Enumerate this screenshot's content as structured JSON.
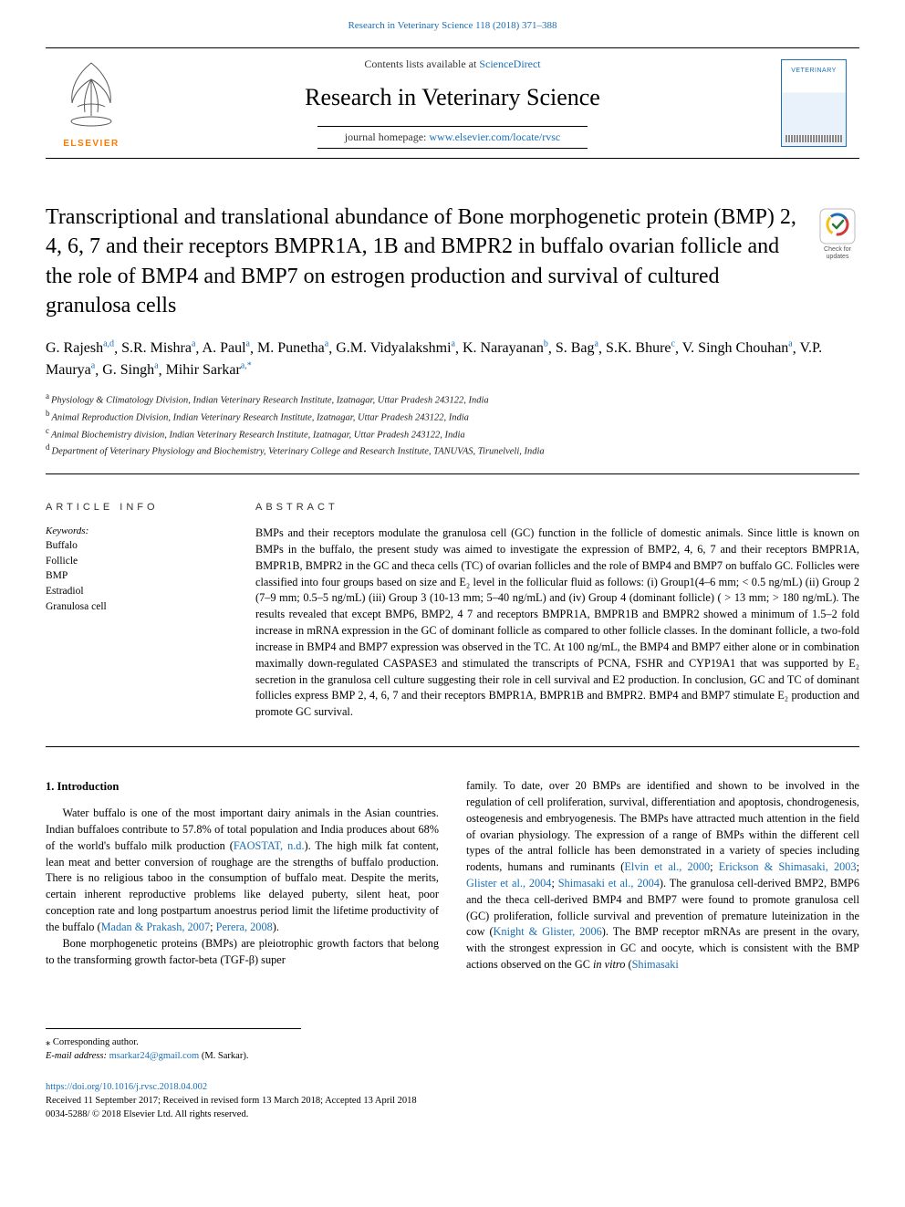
{
  "header": {
    "citation": "Research in Veterinary Science 118 (2018) 371–388",
    "contents_prefix": "Contents lists available at ",
    "contents_link": "ScienceDirect",
    "journal_name": "Research in Veterinary Science",
    "homepage_prefix": "journal homepage: ",
    "homepage_link": "www.elsevier.com/locate/rvsc",
    "publisher_word": "ELSEVIER",
    "cover_word": "VETERINARY"
  },
  "updates_badge": {
    "line1": "Check for",
    "line2": "updates"
  },
  "title": "Transcriptional and translational abundance of Bone morphogenetic protein (BMP) 2, 4, 6, 7 and their receptors BMPR1A, 1B and BMPR2 in buffalo ovarian follicle and the role of BMP4 and BMP7 on estrogen production and survival of cultured granulosa cells",
  "authors": [
    {
      "name": "G. Rajesh",
      "aff": "a,d"
    },
    {
      "name": "S.R. Mishra",
      "aff": "a"
    },
    {
      "name": "A. Paul",
      "aff": "a"
    },
    {
      "name": "M. Punetha",
      "aff": "a"
    },
    {
      "name": "G.M. Vidyalakshmi",
      "aff": "a"
    },
    {
      "name": "K. Narayanan",
      "aff": "b"
    },
    {
      "name": "S. Bag",
      "aff": "a"
    },
    {
      "name": "S.K. Bhure",
      "aff": "c"
    },
    {
      "name": "V. Singh Chouhan",
      "aff": "a"
    },
    {
      "name": "V.P. Maurya",
      "aff": "a"
    },
    {
      "name": "G. Singh",
      "aff": "a"
    },
    {
      "name": "Mihir Sarkar",
      "aff": "a,*"
    }
  ],
  "affiliations": [
    {
      "label": "a",
      "text": "Physiology & Climatology Division, Indian Veterinary Research Institute, Izatnagar, Uttar Pradesh 243122, India"
    },
    {
      "label": "b",
      "text": "Animal Reproduction Division, Indian Veterinary Research Institute, Izatnagar, Uttar Pradesh 243122, India"
    },
    {
      "label": "c",
      "text": "Animal Biochemistry division, Indian Veterinary Research Institute, Izatnagar, Uttar Pradesh 243122, India"
    },
    {
      "label": "d",
      "text": "Department of Veterinary Physiology and Biochemistry, Veterinary College and Research Institute, TANUVAS, Tirunelveli, India"
    }
  ],
  "article_info": {
    "heading": "ARTICLE INFO",
    "keywords_label": "Keywords:",
    "keywords": [
      "Buffalo",
      "Follicle",
      "BMP",
      "Estradiol",
      "Granulosa cell"
    ]
  },
  "abstract": {
    "heading": "ABSTRACT",
    "text": "BMPs and their receptors modulate the granulosa cell (GC) function in the follicle of domestic animals. Since little is known on BMPs in the buffalo, the present study was aimed to investigate the expression of BMP2, 4, 6, 7 and their receptors BMPR1A, BMPR1B, BMPR2 in the GC and theca cells (TC) of ovarian follicles and the role of BMP4 and BMP7 on buffalo GC. Follicles were classified into four groups based on size and E₂ level in the follicular fluid as follows: (i) Group1(4–6 mm; < 0.5 ng/mL) (ii) Group 2 (7–9 mm; 0.5–5 ng/mL) (iii) Group 3 (10-13 mm; 5–40 ng/mL) and (iv) Group 4 (dominant follicle) ( > 13 mm; > 180 ng/mL). The results revealed that except BMP6, BMP2, 4 7 and receptors BMPR1A, BMPR1B and BMPR2 showed a minimum of 1.5–2 fold increase in mRNA expression in the GC of dominant follicle as compared to other follicle classes. In the dominant follicle, a two-fold increase in BMP4 and BMP7 expression was observed in the TC. At 100 ng/mL, the BMP4 and BMP7 either alone or in combination maximally down-regulated CASPASE3 and stimulated the transcripts of PCNA, FSHR and CYP19A1 that was supported by E₂ secretion in the granulosa cell culture suggesting their role in cell survival and E2 production. In conclusion, GC and TC of dominant follicles express BMP 2, 4, 6, 7 and their receptors BMPR1A, BMPR1B and BMPR2. BMP4 and BMP7 stimulate E₂ production and promote GC survival."
  },
  "body": {
    "intro_heading": "1. Introduction",
    "p1_pre": "Water buffalo is one of the most important dairy animals in the Asian countries. Indian buffaloes contribute to 57.8% of total population and India produces about 68% of the world's buffalo milk production (",
    "p1_link1": "FAOSTAT, n.d.",
    "p1_mid": "). The high milk fat content, lean meat and better conversion of roughage are the strengths of buffalo production. There is no religious taboo in the consumption of buffalo meat. Despite the merits, certain inherent reproductive problems like delayed puberty, silent heat, poor conception rate and long postpartum anoestrus period limit the lifetime productivity of the buffalo (",
    "p1_link2": "Madan & Prakash, 2007",
    "p1_sep": "; ",
    "p1_link3": "Perera, 2008",
    "p1_post": ").",
    "p2": "Bone morphogenetic proteins (BMPs) are pleiotrophic growth factors that belong to the transforming growth factor-beta (TGF-β) super",
    "p3_pre": "family. To date, over 20 BMPs are identified and shown to be involved in the regulation of cell proliferation, survival, differentiation and apoptosis, chondrogenesis, osteogenesis and embryogenesis. The BMPs have attracted much attention in the field of ovarian physiology. The expression of a range of BMPs within the different cell types of the antral follicle has been demonstrated in a variety of species including rodents, humans and ruminants (",
    "p3_link1": "Elvin et al., 2000",
    "p3_link2": "Erickson & Shimasaki, 2003",
    "p3_link3": "Glister et al., 2004",
    "p3_link4": "Shimasaki et al., 2004",
    "p3_mid": "). The granulosa cell-derived BMP2, BMP6 and the theca cell-derived BMP4 and BMP7 were found to promote granulosa cell (GC) proliferation, follicle survival and prevention of premature luteinization in the cow (",
    "p3_link5": "Knight & Glister, 2006",
    "p3_post": "). The BMP receptor mRNAs are present in the ovary, with the strongest expression in GC and oocyte, which is consistent with the BMP actions observed on the GC ",
    "p3_ital": "in vitro",
    "p3_open": " (",
    "p3_link6": "Shimasaki"
  },
  "footnotes": {
    "corr_label": "⁎ Corresponding author.",
    "email_label": "E-mail address: ",
    "email": "msarkar24@gmail.com",
    "email_who": " (M. Sarkar)."
  },
  "footer": {
    "doi": "https://doi.org/10.1016/j.rvsc.2018.04.002",
    "history": "Received 11 September 2017; Received in revised form 13 March 2018; Accepted 13 April 2018",
    "copyright": "0034-5288/ © 2018 Elsevier Ltd. All rights reserved."
  },
  "colors": {
    "link": "#1a6fb5",
    "elsevier_orange": "#ff7a00",
    "crossmark_ring": "#d23a3a",
    "crossmark_mark": "#2a7a3a"
  }
}
